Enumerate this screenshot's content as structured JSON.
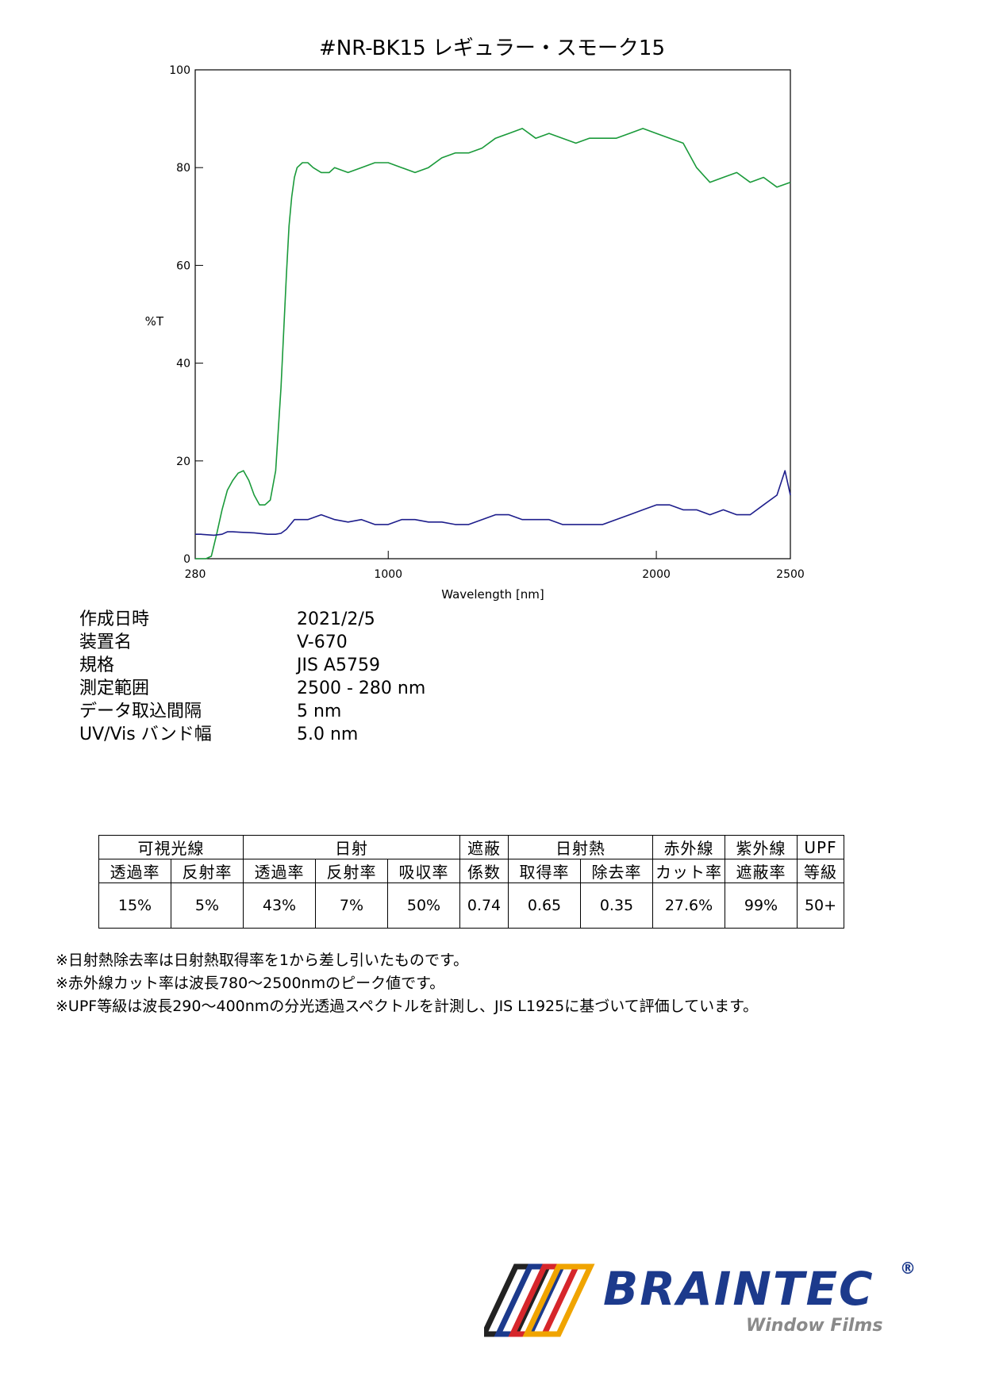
{
  "title": "#NR-BK15  レギュラー・スモーク15",
  "chart_data": {
    "type": "line",
    "xlabel": "Wavelength [nm]",
    "ylabel": "%T",
    "xlim": [
      280,
      2500
    ],
    "ylim": [
      0,
      100
    ],
    "xticks": [
      280,
      1000,
      2000,
      2500
    ],
    "yticks": [
      0,
      20,
      40,
      60,
      80,
      100
    ],
    "grid": false,
    "series": [
      {
        "color": "#1a9a3a",
        "x": [
          280,
          300,
          320,
          340,
          360,
          380,
          400,
          420,
          440,
          460,
          480,
          500,
          520,
          540,
          560,
          580,
          600,
          620,
          630,
          640,
          650,
          660,
          680,
          700,
          720,
          750,
          780,
          800,
          850,
          900,
          950,
          1000,
          1050,
          1100,
          1150,
          1200,
          1250,
          1300,
          1350,
          1400,
          1450,
          1500,
          1550,
          1600,
          1650,
          1700,
          1750,
          1800,
          1850,
          1900,
          1950,
          2000,
          2050,
          2100,
          2150,
          2200,
          2250,
          2300,
          2350,
          2400,
          2450,
          2500
        ],
        "y": [
          0,
          0,
          0,
          0.5,
          5,
          10,
          14,
          16,
          17.5,
          18,
          16,
          13,
          11,
          11,
          12,
          18,
          35,
          58,
          68,
          74,
          78,
          80,
          81,
          81,
          80,
          79,
          79,
          80,
          79,
          80,
          81,
          81,
          80,
          79,
          80,
          82,
          83,
          83,
          84,
          86,
          87,
          88,
          86,
          87,
          86,
          85,
          86,
          86,
          86,
          87,
          88,
          87,
          86,
          85,
          80,
          77,
          78,
          79,
          77,
          78,
          76,
          77
        ]
      },
      {
        "color": "#1e1e8c",
        "x": [
          280,
          300,
          350,
          380,
          400,
          420,
          450,
          500,
          550,
          580,
          600,
          620,
          650,
          700,
          750,
          800,
          850,
          900,
          950,
          1000,
          1050,
          1100,
          1150,
          1200,
          1250,
          1300,
          1350,
          1400,
          1450,
          1500,
          1550,
          1600,
          1650,
          1700,
          1750,
          1800,
          1850,
          1900,
          1950,
          2000,
          2050,
          2100,
          2150,
          2200,
          2250,
          2300,
          2350,
          2400,
          2450,
          2480,
          2500
        ],
        "y": [
          5,
          5,
          4.8,
          5,
          5.5,
          5.5,
          5.4,
          5.3,
          5,
          5,
          5.2,
          6,
          8,
          8,
          9,
          8,
          7.5,
          8,
          7,
          7,
          8,
          8,
          7.5,
          7.5,
          7,
          7,
          8,
          9,
          9,
          8,
          8,
          8,
          7,
          7,
          7,
          7,
          8,
          9,
          10,
          11,
          11,
          10,
          10,
          9,
          10,
          9,
          9,
          11,
          13,
          18,
          13
        ]
      }
    ]
  },
  "meta": [
    {
      "key": "作成日時",
      "value": "2021/2/5"
    },
    {
      "key": "装置名",
      "value": "V-670"
    },
    {
      "key": "規格",
      "value": "JIS A5759"
    },
    {
      "key": "測定範囲",
      "value": "2500 - 280 nm"
    },
    {
      "key": "データ取込間隔",
      "value": "5 nm"
    },
    {
      "key": "UV/Vis バンド幅",
      "value": "5.0 nm"
    }
  ],
  "table": {
    "groups": [
      "可視光線",
      "日射",
      "遮蔽",
      "日射熱",
      "赤外線",
      "紫外線",
      "UPF"
    ],
    "subheaders": [
      "透過率",
      "反射率",
      "透過率",
      "反射率",
      "吸収率",
      "係数",
      "取得率",
      "除去率",
      "カット率",
      "遮蔽率",
      "等級"
    ],
    "values": [
      "15%",
      "5%",
      "43%",
      "7%",
      "50%",
      "0.74",
      "0.65",
      "0.35",
      "27.6%",
      "99%",
      "50+"
    ]
  },
  "notes": [
    "※日射熱除去率は日射熱取得率を1から差し引いたものです。",
    "※赤外線カット率は波長780～2500nmのピーク値です。",
    "※UPF等級は波長290～400nmの分光透過スペクトルを計測し、JIS L1925に基づいて評価しています。"
  ],
  "logo": {
    "name": "BRAINTEC",
    "reg": "®",
    "sub": "Window Films",
    "colors": [
      "#222222",
      "#1c3a8c",
      "#d6262b",
      "#f0a400"
    ]
  }
}
